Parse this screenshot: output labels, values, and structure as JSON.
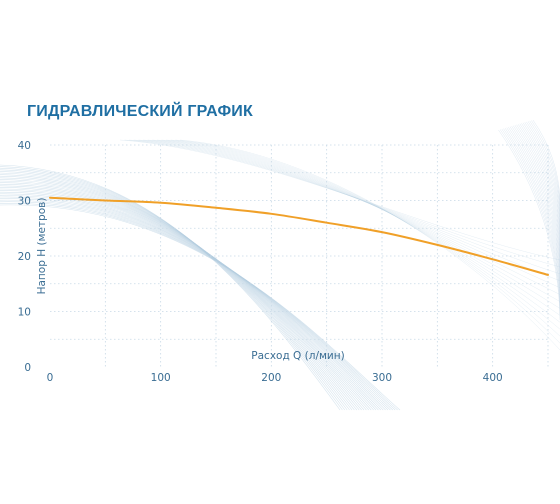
{
  "title": "ГИДРАВЛИЧЕСКИЙ ГРАФИК",
  "chart_data": {
    "type": "line",
    "xlabel": "Расход Q (л/мин)",
    "ylabel": "Напор Н (метров)",
    "xlim": [
      0,
      450
    ],
    "ylim": [
      0,
      40
    ],
    "xticks": [
      "0",
      "100",
      "200",
      "300",
      "400"
    ],
    "yticks": [
      "0",
      "10",
      "20",
      "30",
      "40"
    ],
    "grid": true,
    "series": [
      {
        "color": "#f0a028",
        "x": [
          0,
          50,
          100,
          150,
          200,
          250,
          300,
          350,
          400,
          450
        ],
        "y": [
          30.5,
          30.0,
          29.6,
          28.7,
          27.6,
          26.0,
          24.3,
          22.0,
          19.4,
          16.6
        ]
      }
    ],
    "colors": {
      "text": "#1f6fa3",
      "tick": "#3a6d93",
      "grid": "#c8d9e6",
      "wave": "#b5cde0"
    }
  }
}
